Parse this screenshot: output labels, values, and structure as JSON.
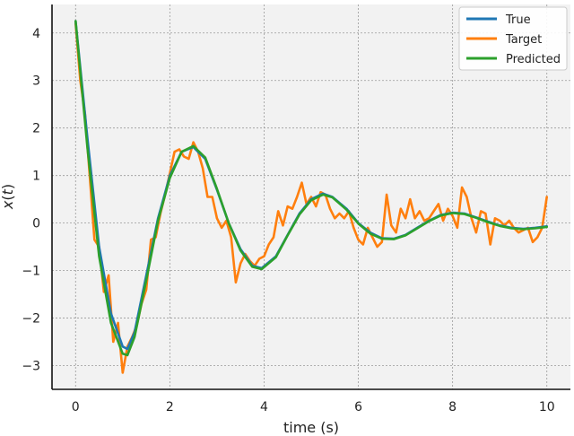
{
  "chart_data": {
    "type": "line",
    "title": "",
    "xlabel": "time (s)",
    "ylabel": "x(t)",
    "ylabel_parts": {
      "var": "x",
      "open": "(",
      "arg": "t",
      "close": ")"
    },
    "xlim": [
      -0.5,
      10.5
    ],
    "ylim": [
      -3.5,
      4.6
    ],
    "xticks": [
      0,
      2,
      4,
      6,
      8,
      10
    ],
    "yticks": [
      -3,
      -2,
      -1,
      0,
      1,
      2,
      3,
      4
    ],
    "xtick_labels": [
      "0",
      "2",
      "4",
      "6",
      "8",
      "10"
    ],
    "ytick_labels": [
      "−3",
      "−2",
      "−1",
      "0",
      "1",
      "2",
      "3",
      "4"
    ],
    "grid": true,
    "legend": "top-right",
    "series": [
      {
        "name": "True",
        "color": "#1f77b4",
        "x": [
          0,
          0.25,
          0.5,
          0.75,
          1.0,
          1.1,
          1.25,
          1.5,
          1.75,
          2.0,
          2.25,
          2.5,
          2.75,
          3.0,
          3.25,
          3.5,
          3.75,
          3.95,
          4.25,
          4.5,
          4.75,
          5.0,
          5.25,
          5.45,
          5.75,
          6.0,
          6.25,
          6.5,
          6.75,
          7.0,
          7.25,
          7.5,
          7.75,
          8.0,
          8.25,
          8.5,
          8.75,
          9.0,
          9.25,
          9.5,
          9.75,
          10.0
        ],
        "y": [
          4.25,
          1.8,
          -0.5,
          -1.9,
          -2.6,
          -2.65,
          -2.3,
          -1.1,
          0.1,
          1.0,
          1.5,
          1.6,
          1.35,
          0.7,
          0.0,
          -0.55,
          -0.9,
          -0.95,
          -0.7,
          -0.25,
          0.2,
          0.5,
          0.62,
          0.55,
          0.3,
          0.0,
          -0.2,
          -0.32,
          -0.33,
          -0.25,
          -0.1,
          0.05,
          0.17,
          0.22,
          0.2,
          0.12,
          0.03,
          -0.05,
          -0.1,
          -0.12,
          -0.1,
          -0.07
        ]
      },
      {
        "name": "Target",
        "color": "#ff7f0e",
        "x": [
          0,
          0.1,
          0.2,
          0.3,
          0.4,
          0.5,
          0.6,
          0.7,
          0.8,
          0.9,
          1.0,
          1.1,
          1.2,
          1.3,
          1.4,
          1.5,
          1.6,
          1.7,
          1.8,
          1.9,
          2.0,
          2.1,
          2.2,
          2.3,
          2.4,
          2.5,
          2.6,
          2.7,
          2.8,
          2.9,
          3.0,
          3.1,
          3.2,
          3.3,
          3.4,
          3.5,
          3.6,
          3.7,
          3.8,
          3.9,
          4.0,
          4.1,
          4.2,
          4.3,
          4.4,
          4.5,
          4.6,
          4.7,
          4.8,
          4.9,
          5.0,
          5.1,
          5.2,
          5.3,
          5.4,
          5.5,
          5.6,
          5.7,
          5.8,
          5.9,
          6.0,
          6.1,
          6.2,
          6.3,
          6.4,
          6.5,
          6.6,
          6.7,
          6.8,
          6.9,
          7.0,
          7.1,
          7.2,
          7.3,
          7.4,
          7.5,
          7.6,
          7.7,
          7.8,
          7.9,
          8.0,
          8.1,
          8.2,
          8.3,
          8.4,
          8.5,
          8.6,
          8.7,
          8.8,
          8.9,
          9.0,
          9.1,
          9.2,
          9.3,
          9.4,
          9.5,
          9.6,
          9.7,
          9.8,
          9.9,
          10.0
        ],
        "y": [
          4.2,
          3.0,
          2.3,
          1.0,
          -0.35,
          -0.5,
          -1.45,
          -1.1,
          -2.5,
          -2.1,
          -3.15,
          -2.6,
          -2.4,
          -2.15,
          -1.7,
          -1.4,
          -0.35,
          -0.3,
          0.2,
          0.6,
          1.05,
          1.5,
          1.55,
          1.4,
          1.35,
          1.7,
          1.5,
          1.15,
          0.55,
          0.55,
          0.1,
          -0.1,
          0.05,
          -0.3,
          -1.25,
          -0.85,
          -0.65,
          -0.8,
          -0.9,
          -0.75,
          -0.7,
          -0.45,
          -0.3,
          0.25,
          -0.05,
          0.35,
          0.3,
          0.55,
          0.85,
          0.4,
          0.55,
          0.35,
          0.65,
          0.6,
          0.3,
          0.1,
          0.2,
          0.1,
          0.25,
          -0.1,
          -0.35,
          -0.45,
          -0.1,
          -0.3,
          -0.5,
          -0.4,
          0.6,
          -0.05,
          -0.2,
          0.3,
          0.1,
          0.5,
          0.1,
          0.25,
          0.05,
          0.1,
          0.25,
          0.4,
          0.05,
          0.3,
          0.15,
          -0.1,
          0.75,
          0.55,
          0.1,
          -0.2,
          0.25,
          0.2,
          -0.45,
          0.1,
          0.05,
          -0.05,
          0.05,
          -0.1,
          -0.2,
          -0.15,
          -0.1,
          -0.4,
          -0.3,
          -0.1,
          0.55
        ]
      },
      {
        "name": "Predicted",
        "color": "#2ca02c",
        "x": [
          0,
          0.25,
          0.5,
          0.75,
          1.0,
          1.1,
          1.25,
          1.5,
          1.75,
          2.0,
          2.25,
          2.5,
          2.75,
          3.0,
          3.25,
          3.5,
          3.75,
          3.95,
          4.25,
          4.5,
          4.75,
          5.0,
          5.25,
          5.45,
          5.75,
          6.0,
          6.25,
          6.5,
          6.75,
          7.0,
          7.25,
          7.5,
          7.75,
          8.0,
          8.25,
          8.5,
          8.75,
          9.0,
          9.25,
          9.5,
          9.75,
          10.0
        ],
        "y": [
          4.25,
          1.6,
          -0.7,
          -2.1,
          -2.75,
          -2.78,
          -2.4,
          -1.2,
          0.05,
          0.95,
          1.5,
          1.62,
          1.38,
          0.72,
          0.0,
          -0.58,
          -0.92,
          -0.97,
          -0.72,
          -0.26,
          0.18,
          0.48,
          0.6,
          0.54,
          0.28,
          -0.01,
          -0.22,
          -0.33,
          -0.34,
          -0.26,
          -0.11,
          0.04,
          0.16,
          0.21,
          0.19,
          0.11,
          0.02,
          -0.06,
          -0.11,
          -0.13,
          -0.11,
          -0.08
        ]
      }
    ]
  }
}
